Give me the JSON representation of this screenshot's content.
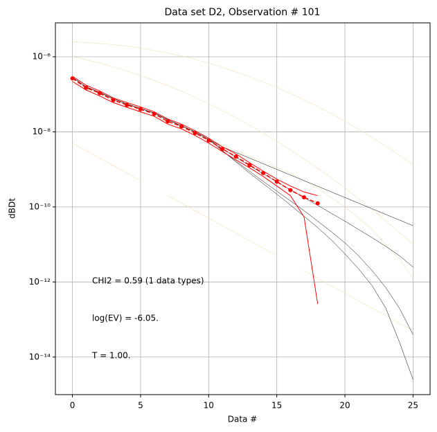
{
  "chart_data": {
    "type": "line",
    "title": "Data set D2, Observation # 101",
    "xlabel": "Data #",
    "ylabel": "dBDt",
    "yscale": "log",
    "grid": true,
    "xlim": [
      -1.25,
      26.25
    ],
    "xticks": [
      0,
      5,
      10,
      15,
      20,
      25
    ],
    "ylim": [
      1e-15,
      8e-06
    ],
    "yticks": [
      {
        "value": 1e-14,
        "label": "10⁻¹⁴"
      },
      {
        "value": 1e-12,
        "label": "10⁻¹²"
      },
      {
        "value": 1e-10,
        "label": "10⁻¹⁰"
      },
      {
        "value": 1e-08,
        "label": "10⁻⁸"
      },
      {
        "value": 1e-06,
        "label": "10⁻⁶"
      }
    ],
    "annotations": [
      "CHI2 = 0.59 (1 data types)",
      "log(EV) = -6.05.",
      "T = 1.00."
    ],
    "x": [
      0,
      1,
      2,
      3,
      4,
      5,
      6,
      7,
      8,
      9,
      10,
      11,
      12,
      13,
      14,
      15,
      16,
      17,
      18,
      19,
      20,
      21,
      22,
      23,
      24,
      25
    ],
    "series": [
      {
        "color": "#f5deb3",
        "linewidth": 0.6,
        "values": [
          2.51e-06,
          2.4e-06,
          2.24e-06,
          2.09e-06,
          1.91e-06,
          1.7e-06,
          1.48e-06,
          1.26e-06,
          1.05e-06,
          8.51e-07,
          6.76e-07,
          5.25e-07,
          3.98e-07,
          2.95e-07,
          2.14e-07,
          1.51e-07,
          1.05e-07,
          7.08e-08,
          4.68e-08,
          3.02e-08,
          1.91e-08,
          1.17e-08,
          7.08e-09,
          4.17e-09,
          2.4e-09,
          1.35e-09
        ]
      },
      {
        "color": "#f5deb3",
        "linewidth": 0.6,
        "values": [
          1e-06,
          8.32e-07,
          6.76e-07,
          5.37e-07,
          4.17e-07,
          3.16e-07,
          2.34e-07,
          1.7e-07,
          1.2e-07,
          8.32e-08,
          5.62e-08,
          3.72e-08,
          2.4e-08,
          1.51e-08,
          9.33e-09,
          5.62e-09,
          3.31e-09,
          1.91e-09,
          1.07e-09,
          5.89e-10,
          3.16e-10,
          1.66e-10,
          8.51e-11,
          4.27e-11,
          2.09e-11,
          1e-11
        ]
      },
      {
        "color": "#f5deb3",
        "linewidth": 0.6,
        "values": [
          2e-07,
          1.41e-07,
          1e-07,
          7.08e-08,
          5.01e-08,
          3.55e-08,
          2.51e-08,
          1.78e-08,
          1.26e-08,
          8.91e-09,
          6.31e-09,
          4.47e-09,
          3.16e-09,
          2.24e-09,
          1.58e-09,
          1.12e-09,
          7.94e-10,
          5.01e-10,
          3.16e-10,
          1.78e-10,
          1e-10,
          5.01e-11,
          2.51e-11,
          1e-11,
          3.98e-12,
          1.26e-12
        ]
      },
      {
        "color": "#f5deb3",
        "linewidth": 0.6,
        "values": [
          5.01e-09,
          3.16e-09,
          2e-09,
          1.26e-09,
          7.94e-10,
          5.01e-10,
          null,
          2e-10,
          1.26e-10,
          7.94e-11,
          5.01e-11,
          3.16e-11,
          2e-11,
          1.26e-11,
          7.94e-12,
          5.01e-12,
          null,
          2e-12,
          1.26e-12,
          7.94e-13,
          5.01e-13,
          3.16e-13,
          2e-13,
          1.26e-13,
          7.94e-14,
          5.01e-14
        ]
      },
      {
        "color": "#000000",
        "linewidth": 0.5,
        "values": [
          2.82e-07,
          1.58e-07,
          1.12e-07,
          7.6e-08,
          5.5e-08,
          4.17e-08,
          3.16e-08,
          2.09e-08,
          1.45e-08,
          1e-08,
          6.31e-09,
          3.98e-09,
          2.82e-09,
          2e-09,
          1.41e-09,
          1e-09,
          7.08e-10,
          5.01e-10,
          3.55e-10,
          2.51e-10,
          1.78e-10,
          1.26e-10,
          8.91e-11,
          6.31e-11,
          4.47e-11,
          3.16e-11
        ]
      },
      {
        "color": "#000000",
        "linewidth": 0.5,
        "values": [
          2.82e-07,
          1.58e-07,
          1.12e-07,
          7.6e-08,
          5.5e-08,
          4.17e-08,
          3.16e-08,
          2.09e-08,
          1.45e-08,
          1e-08,
          6.31e-09,
          3.55e-09,
          2.09e-09,
          1.26e-09,
          7.59e-10,
          4.68e-10,
          2.88e-10,
          1.78e-10,
          1.1e-10,
          6.76e-11,
          4.17e-11,
          2.51e-11,
          1.51e-11,
          8.91e-12,
          5.01e-12,
          2.51e-12
        ]
      },
      {
        "color": "#000000",
        "linewidth": 0.5,
        "values": [
          2.82e-07,
          1.58e-07,
          1.12e-07,
          7.6e-08,
          5.5e-08,
          4.17e-08,
          3.16e-08,
          2.09e-08,
          1.45e-08,
          1e-08,
          6.31e-09,
          3.16e-09,
          1.66e-09,
          8.91e-10,
          4.79e-10,
          2.63e-10,
          1.45e-10,
          7.94e-11,
          4.17e-11,
          2.19e-11,
          1.1e-11,
          5.01e-12,
          2e-12,
          7.08e-13,
          2e-13,
          3.98e-14
        ]
      },
      {
        "color": "#000000",
        "linewidth": 0.5,
        "values": [
          2.82e-07,
          1.58e-07,
          1.12e-07,
          7.6e-08,
          5.5e-08,
          4.17e-08,
          3.16e-08,
          2.09e-08,
          1.45e-08,
          1e-08,
          6.31e-09,
          3.16e-09,
          1.58e-09,
          7.94e-10,
          4.17e-10,
          2.19e-10,
          1.12e-10,
          5.62e-11,
          2.82e-11,
          1.32e-11,
          5.62e-12,
          2.24e-12,
          7.94e-13,
          2e-13,
          2.51e-14,
          2.51e-15
        ]
      },
      {
        "color": "#ff0000",
        "linewidth": 1,
        "x": [
          0,
          1,
          2,
          3,
          4,
          5,
          6,
          7,
          8,
          9,
          10,
          11,
          12,
          13,
          14,
          15,
          16,
          17,
          18
        ],
        "values": [
          3e-07,
          1.75e-07,
          1.22e-07,
          8e-08,
          6e-08,
          4.6e-08,
          3.4e-08,
          2.2e-08,
          1.6e-08,
          1.07e-08,
          6.8e-09,
          4e-09,
          2.6e-09,
          1.5e-09,
          9e-10,
          5.5e-10,
          3.6e-10,
          2.5e-10,
          2e-10
        ]
      },
      {
        "color": "#ff0000",
        "linewidth": 1,
        "x": [
          0,
          1,
          2,
          3,
          4,
          5,
          6,
          7,
          8,
          9,
          10,
          11,
          12,
          13,
          14,
          15,
          16,
          17,
          18
        ],
        "values": [
          2.2e-07,
          1.3e-07,
          9e-08,
          6e-08,
          4.5e-08,
          3.4e-08,
          2.6e-08,
          1.6e-08,
          1.2e-08,
          8e-09,
          5e-09,
          3e-09,
          1.8e-09,
          1.1e-09,
          6.5e-10,
          3.6e-10,
          2e-10,
          5.4e-11,
          2.6e-13
        ]
      },
      {
        "color": "#ff0000",
        "linewidth": 1.5,
        "marker": "o",
        "linestyle": "--",
        "x": [
          0,
          1,
          2,
          3,
          4,
          5,
          6,
          7,
          8,
          9,
          10,
          11,
          12,
          13,
          14,
          15,
          16,
          17,
          18
        ],
        "values": [
          2.65e-07,
          1.5e-07,
          1.07e-07,
          7e-08,
          5.2e-08,
          4e-08,
          3e-08,
          1.9e-08,
          1.4e-08,
          9.3e-09,
          5.9e-09,
          3.5e-09,
          2.2e-09,
          1.3e-09,
          8e-10,
          4.7e-10,
          2.8e-10,
          1.8e-10,
          1.25e-10
        ]
      }
    ]
  }
}
